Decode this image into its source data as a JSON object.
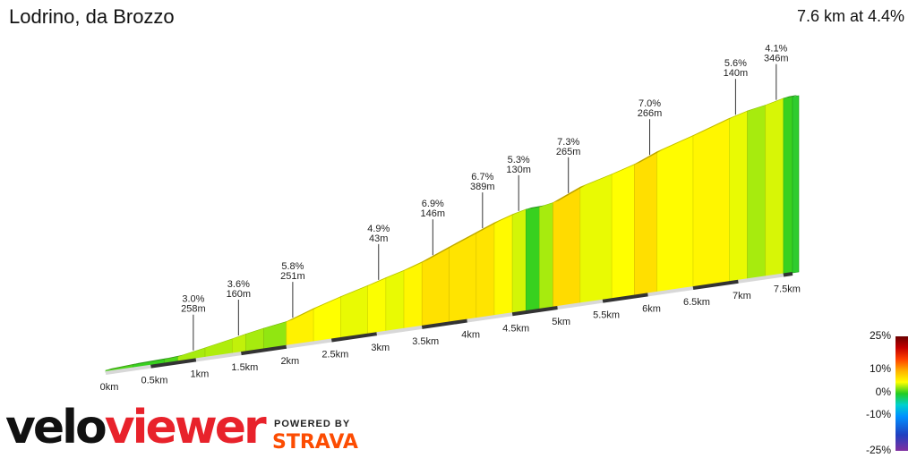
{
  "header": {
    "title": "Lodrino, da Brozzo",
    "summary": "7.6 km at 4.4%"
  },
  "branding": {
    "logo_part1": "velo",
    "logo_part2": "viewer",
    "powered_by": "POWERED BY",
    "strava": "STRAVA",
    "logo_color": "#e8222b",
    "strava_color": "#fc4c02"
  },
  "legend": {
    "labels": [
      "25%",
      "10%",
      "0%",
      "-10%",
      "-25%"
    ],
    "stops": [
      {
        "value": 25,
        "color": "#6b0000"
      },
      {
        "value": 20,
        "color": "#c40000"
      },
      {
        "value": 15,
        "color": "#ff4000"
      },
      {
        "value": 10,
        "color": "#ffb000"
      },
      {
        "value": 5,
        "color": "#ffff00"
      },
      {
        "value": 0,
        "color": "#22cc22"
      },
      {
        "value": -5,
        "color": "#00d0d0"
      },
      {
        "value": -10,
        "color": "#0090ff"
      },
      {
        "value": -18,
        "color": "#2040c0"
      },
      {
        "value": -25,
        "color": "#8030a0"
      }
    ]
  },
  "chart_data": {
    "type": "area",
    "title": "Lodrino, da Brozzo",
    "subtitle": "7.6 km at 4.4%",
    "xlabel": "",
    "ylabel": "",
    "xlim": [
      0,
      7.6
    ],
    "x_tick_labels": [
      "0km",
      "0.5km",
      "1km",
      "1.5km",
      "2km",
      "2.5km",
      "3km",
      "3.5km",
      "4km",
      "4.5km",
      "5km",
      "5.5km",
      "6km",
      "6.5km",
      "7km",
      "7.5km"
    ],
    "segments": [
      {
        "x0": 0.0,
        "x1": 0.3,
        "gradient": 1.0
      },
      {
        "x0": 0.3,
        "x1": 0.65,
        "gradient": 0.5
      },
      {
        "x0": 0.65,
        "x1": 0.8,
        "gradient": 1.0
      },
      {
        "x0": 0.8,
        "x1": 1.1,
        "gradient": 3.0
      },
      {
        "x0": 1.1,
        "x1": 1.4,
        "gradient": 3.2
      },
      {
        "x0": 1.4,
        "x1": 1.55,
        "gradient": 3.6
      },
      {
        "x0": 1.55,
        "x1": 1.75,
        "gradient": 3.0
      },
      {
        "x0": 1.75,
        "x1": 2.0,
        "gradient": 2.5
      },
      {
        "x0": 2.0,
        "x1": 2.3,
        "gradient": 5.8
      },
      {
        "x0": 2.3,
        "x1": 2.6,
        "gradient": 5.0
      },
      {
        "x0": 2.6,
        "x1": 2.9,
        "gradient": 4.5
      },
      {
        "x0": 2.9,
        "x1": 3.1,
        "gradient": 4.9
      },
      {
        "x0": 3.1,
        "x1": 3.3,
        "gradient": 4.5
      },
      {
        "x0": 3.3,
        "x1": 3.5,
        "gradient": 5.5
      },
      {
        "x0": 3.5,
        "x1": 3.8,
        "gradient": 6.9
      },
      {
        "x0": 3.8,
        "x1": 4.1,
        "gradient": 6.7
      },
      {
        "x0": 4.1,
        "x1": 4.3,
        "gradient": 6.7
      },
      {
        "x0": 4.3,
        "x1": 4.5,
        "gradient": 5.3
      },
      {
        "x0": 4.5,
        "x1": 4.65,
        "gradient": 4.0
      },
      {
        "x0": 4.65,
        "x1": 4.8,
        "gradient": 0.5
      },
      {
        "x0": 4.8,
        "x1": 4.95,
        "gradient": 3.0
      },
      {
        "x0": 4.95,
        "x1": 5.25,
        "gradient": 7.3
      },
      {
        "x0": 5.25,
        "x1": 5.6,
        "gradient": 4.5
      },
      {
        "x0": 5.6,
        "x1": 5.85,
        "gradient": 5.0
      },
      {
        "x0": 5.85,
        "x1": 6.1,
        "gradient": 7.0
      },
      {
        "x0": 6.1,
        "x1": 6.5,
        "gradient": 5.2
      },
      {
        "x0": 6.5,
        "x1": 6.9,
        "gradient": 5.6
      },
      {
        "x0": 6.9,
        "x1": 7.1,
        "gradient": 4.5
      },
      {
        "x0": 7.1,
        "x1": 7.3,
        "gradient": 3.0
      },
      {
        "x0": 7.3,
        "x1": 7.5,
        "gradient": 4.1
      },
      {
        "x0": 7.5,
        "x1": 7.6,
        "gradient": 0.5
      }
    ],
    "annotations": [
      {
        "x": 0.95,
        "gradient": "3.0%",
        "length": "258m"
      },
      {
        "x": 1.45,
        "gradient": "3.6%",
        "length": "160m"
      },
      {
        "x": 2.05,
        "gradient": "5.8%",
        "length": "251m"
      },
      {
        "x": 3.0,
        "gradient": "4.9%",
        "length": "43m"
      },
      {
        "x": 3.6,
        "gradient": "6.9%",
        "length": "146m"
      },
      {
        "x": 4.15,
        "gradient": "6.7%",
        "length": "389m"
      },
      {
        "x": 4.55,
        "gradient": "5.3%",
        "length": "130m"
      },
      {
        "x": 5.1,
        "gradient": "7.3%",
        "length": "265m"
      },
      {
        "x": 6.0,
        "gradient": "7.0%",
        "length": "266m"
      },
      {
        "x": 6.95,
        "gradient": "5.6%",
        "length": "140m"
      },
      {
        "x": 7.4,
        "gradient": "4.1%",
        "length": "346m"
      }
    ]
  }
}
